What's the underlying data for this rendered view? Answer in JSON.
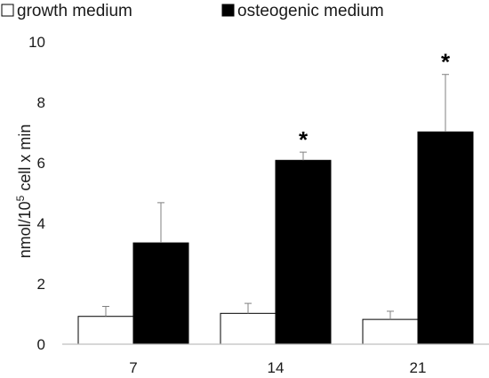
{
  "chart_data": {
    "type": "bar",
    "categories": [
      "7",
      "14",
      "21"
    ],
    "series": [
      {
        "name": "growth medium",
        "values": [
          0.92,
          1.02,
          0.82
        ],
        "errors": [
          0.33,
          0.33,
          0.27
        ],
        "color": "#ffffff",
        "significance": [
          "",
          "",
          ""
        ]
      },
      {
        "name": "osteogenic medium",
        "values": [
          3.35,
          6.08,
          7.02
        ],
        "errors": [
          1.33,
          0.27,
          1.9
        ],
        "color": "#000000",
        "significance": [
          "",
          "*",
          "*"
        ]
      }
    ],
    "ylabel": {
      "prefix": "nmol/10",
      "superscript": "5",
      "suffix": " cell x min"
    },
    "yticks": [
      "0",
      "2",
      "4",
      "6",
      "8",
      "10"
    ],
    "ylim": [
      0,
      10
    ],
    "grid": false,
    "legend_position": "top"
  }
}
